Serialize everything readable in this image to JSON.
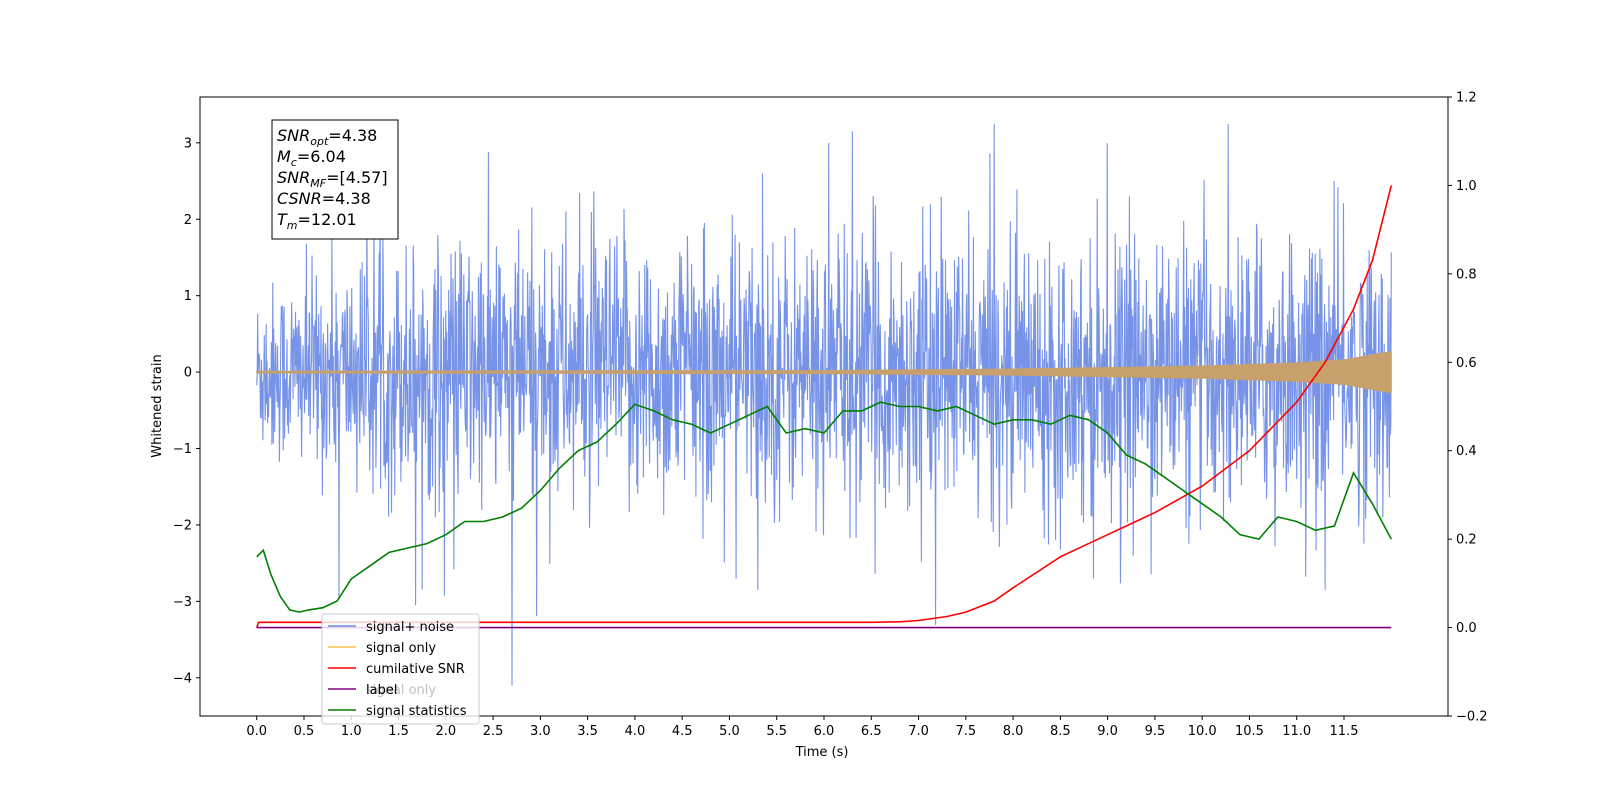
{
  "chart_data": {
    "type": "line",
    "xlabel": "Time (s)",
    "ylabel": "Whitened strain",
    "xlim": [
      -0.6,
      12.6
    ],
    "ylim": [
      -4.5,
      3.6
    ],
    "y2lim": [
      -0.2,
      1.2
    ],
    "x_ticks": [
      "0.0",
      "0.5",
      "1.0",
      "1.5",
      "2.0",
      "2.5",
      "3.0",
      "3.5",
      "4.0",
      "4.5",
      "5.0",
      "5.5",
      "6.0",
      "6.5",
      "7.0",
      "7.5",
      "8.0",
      "8.5",
      "9.0",
      "9.5",
      "10.0",
      "10.5",
      "11.0",
      "11.5"
    ],
    "y_ticks": [
      "3",
      "2",
      "1",
      "0",
      "−1",
      "−2",
      "−3",
      "−4"
    ],
    "y2_ticks": [
      "1.2",
      "1.0",
      "0.8",
      "0.6",
      "0.4",
      "0.2",
      "0.0",
      "−0.2"
    ],
    "annotation": [
      {
        "base": "SNR",
        "sub": "opt",
        "rest": "=4.38"
      },
      {
        "base": "M",
        "sub": "c",
        "rest": "=6.04"
      },
      {
        "base": "SNR",
        "sub": "MF",
        "rest": "=[4.57]"
      },
      {
        "base": "CSNR",
        "sub": "",
        "rest": "=4.38"
      },
      {
        "base": "T",
        "sub": "m",
        "rest": "=12.01"
      }
    ],
    "legend": {
      "placement": "lower-left",
      "entries": [
        {
          "label": "signal+ noise",
          "color": "#6f8de6"
        },
        {
          "label": "signal only",
          "color": "#ffc04d"
        },
        {
          "label": "cumilative SNR",
          "color": "#ff0000"
        },
        {
          "label": "label",
          "color": "#800080"
        },
        {
          "label": "signal statistics",
          "color": "#008000"
        }
      ],
      "hidden_text": "signal only"
    },
    "series": [
      {
        "name": "signal+ noise",
        "axis": "left",
        "color": "#6f8de6",
        "description": "dense noise band roughly between -1.5 and 1.5 with spikes reaching 3.25 and -4.1",
        "time_range": [
          0.0,
          12.0
        ],
        "envelope": [
          {
            "x": 0.0,
            "lo": -1.0,
            "hi": 1.0
          },
          {
            "x": 2.0,
            "lo": -1.6,
            "hi": 1.6
          },
          {
            "x": 6.0,
            "lo": -1.6,
            "hi": 1.6
          },
          {
            "x": 12.0,
            "lo": -1.6,
            "hi": 1.6
          }
        ],
        "peaks": [
          {
            "x": 7.8,
            "y": 3.25
          },
          {
            "x": 6.3,
            "y": 3.15
          },
          {
            "x": 5.35,
            "y": 2.6
          },
          {
            "x": 6.05,
            "y": 3.0
          },
          {
            "x": 2.7,
            "y": -4.1
          },
          {
            "x": 1.68,
            "y": -3.05
          },
          {
            "x": 0.87,
            "y": -2.95
          },
          {
            "x": 5.3,
            "y": -2.85
          },
          {
            "x": 11.3,
            "y": -2.85
          },
          {
            "x": 8.85,
            "y": -2.7
          }
        ]
      },
      {
        "name": "signal only",
        "axis": "left",
        "color": "#c8a06c",
        "envelope": [
          {
            "x": 0.0,
            "amp": 0.012
          },
          {
            "x": 6.0,
            "amp": 0.02
          },
          {
            "x": 8.0,
            "amp": 0.04
          },
          {
            "x": 10.0,
            "amp": 0.08
          },
          {
            "x": 11.0,
            "amp": 0.12
          },
          {
            "x": 11.5,
            "amp": 0.16
          },
          {
            "x": 12.0,
            "amp": 0.27
          }
        ]
      },
      {
        "name": "cumilative SNR",
        "axis": "right",
        "color": "#ff0000",
        "x": [
          0.0,
          0.02,
          6.5,
          6.8,
          7.0,
          7.3,
          7.5,
          7.8,
          8.0,
          8.5,
          9.0,
          9.5,
          10.0,
          10.5,
          11.0,
          11.3,
          11.6,
          11.8,
          12.0
        ],
        "y": [
          0.0,
          0.012,
          0.012,
          0.013,
          0.016,
          0.025,
          0.035,
          0.06,
          0.09,
          0.16,
          0.21,
          0.26,
          0.32,
          0.4,
          0.51,
          0.6,
          0.72,
          0.83,
          1.0
        ]
      },
      {
        "name": "label",
        "axis": "right",
        "color": "#800080",
        "x": [
          0.0,
          12.0
        ],
        "y": [
          0.0,
          0.0
        ]
      },
      {
        "name": "signal statistics",
        "axis": "right",
        "color": "#008000",
        "x": [
          0.0,
          0.07,
          0.15,
          0.25,
          0.35,
          0.45,
          0.55,
          0.7,
          0.85,
          1.0,
          1.2,
          1.4,
          1.6,
          1.8,
          2.0,
          2.2,
          2.4,
          2.6,
          2.8,
          3.0,
          3.2,
          3.4,
          3.6,
          3.8,
          4.0,
          4.2,
          4.4,
          4.6,
          4.8,
          5.0,
          5.2,
          5.4,
          5.6,
          5.8,
          6.0,
          6.2,
          6.4,
          6.6,
          6.8,
          7.0,
          7.2,
          7.4,
          7.6,
          7.8,
          8.0,
          8.2,
          8.4,
          8.6,
          8.8,
          9.0,
          9.2,
          9.4,
          9.6,
          9.8,
          10.0,
          10.2,
          10.4,
          10.6,
          10.8,
          11.0,
          11.2,
          11.4,
          11.6,
          11.8,
          12.0
        ],
        "y": [
          0.16,
          0.175,
          0.12,
          0.07,
          0.04,
          0.035,
          0.04,
          0.045,
          0.06,
          0.11,
          0.14,
          0.17,
          0.18,
          0.19,
          0.21,
          0.24,
          0.24,
          0.25,
          0.27,
          0.31,
          0.36,
          0.4,
          0.42,
          0.46,
          0.505,
          0.49,
          0.47,
          0.46,
          0.44,
          0.46,
          0.48,
          0.5,
          0.44,
          0.45,
          0.44,
          0.49,
          0.49,
          0.51,
          0.5,
          0.5,
          0.49,
          0.5,
          0.48,
          0.46,
          0.47,
          0.47,
          0.46,
          0.48,
          0.47,
          0.44,
          0.39,
          0.37,
          0.34,
          0.31,
          0.28,
          0.25,
          0.21,
          0.2,
          0.25,
          0.24,
          0.22,
          0.23,
          0.35,
          0.28,
          0.2
        ]
      }
    ]
  }
}
